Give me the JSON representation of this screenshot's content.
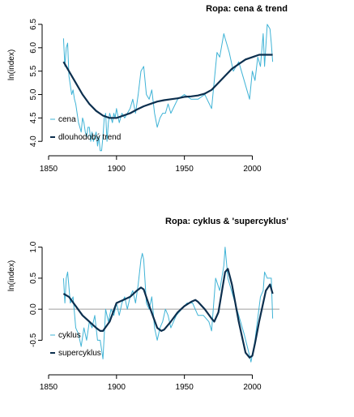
{
  "colors": {
    "price": "#3fb3d6",
    "trend": "#0c2f4e",
    "zero_line": "#b0b0b0"
  },
  "chart_data": [
    {
      "type": "line",
      "title": "Ropa: cena & trend",
      "ylabel": "ln(index)",
      "xlim": [
        1850,
        2020
      ],
      "ylim": [
        3.9,
        6.5
      ],
      "x_ticks": [
        "1850",
        "1900",
        "1950",
        "2000"
      ],
      "y_ticks": [
        "4.0",
        "4.5",
        "5.0",
        "5.5",
        "6.0",
        "6.5"
      ],
      "grid": false,
      "legend": "bottom-left",
      "series": [
        {
          "name": "cena",
          "x": [
            1861,
            1862,
            1863,
            1864,
            1865,
            1866,
            1867,
            1868,
            1869,
            1870,
            1871,
            1872,
            1873,
            1874,
            1875,
            1876,
            1877,
            1878,
            1879,
            1880,
            1881,
            1882,
            1883,
            1884,
            1885,
            1886,
            1887,
            1888,
            1889,
            1890,
            1891,
            1892,
            1893,
            1894,
            1895,
            1896,
            1897,
            1898,
            1899,
            1900,
            1902,
            1904,
            1906,
            1908,
            1910,
            1912,
            1914,
            1916,
            1918,
            1920,
            1922,
            1924,
            1926,
            1928,
            1930,
            1932,
            1934,
            1936,
            1938,
            1940,
            1945,
            1950,
            1955,
            1960,
            1965,
            1970,
            1973,
            1974,
            1976,
            1979,
            1980,
            1983,
            1986,
            1990,
            1994,
            1998,
            2000,
            2002,
            2004,
            2006,
            2008,
            2009,
            2011,
            2013,
            2014,
            2015
          ],
          "values": [
            6.2,
            5.6,
            6.0,
            6.1,
            5.4,
            5.2,
            5.0,
            5.1,
            4.9,
            4.8,
            4.6,
            4.4,
            4.3,
            4.2,
            4.5,
            4.4,
            4.2,
            4.1,
            4.3,
            4.3,
            4.0,
            4.2,
            4.0,
            4.1,
            4.2,
            3.9,
            4.1,
            3.8,
            3.8,
            4.1,
            4.5,
            4.6,
            4.0,
            4.4,
            4.6,
            4.5,
            4.4,
            4.6,
            4.5,
            4.7,
            4.4,
            4.6,
            4.5,
            4.6,
            4.7,
            4.9,
            4.6,
            5.0,
            5.5,
            5.6,
            5.0,
            4.9,
            5.1,
            4.6,
            4.3,
            4.5,
            4.6,
            4.6,
            4.8,
            4.6,
            4.9,
            5.0,
            4.9,
            4.9,
            5.0,
            4.7,
            5.6,
            5.9,
            5.8,
            6.3,
            6.2,
            5.9,
            5.5,
            5.7,
            5.3,
            4.9,
            5.5,
            5.3,
            5.8,
            5.6,
            6.3,
            5.6,
            6.5,
            6.4,
            6.1,
            5.7
          ]
        },
        {
          "name": "dlouhodobý trend",
          "x": [
            1861,
            1865,
            1870,
            1875,
            1880,
            1885,
            1890,
            1895,
            1900,
            1905,
            1910,
            1915,
            1920,
            1925,
            1930,
            1935,
            1940,
            1945,
            1950,
            1955,
            1960,
            1965,
            1970,
            1975,
            1980,
            1985,
            1990,
            1995,
            2000,
            2005,
            2010,
            2015
          ],
          "values": [
            5.7,
            5.5,
            5.25,
            5.0,
            4.8,
            4.65,
            4.55,
            4.5,
            4.5,
            4.55,
            4.6,
            4.68,
            4.75,
            4.8,
            4.85,
            4.88,
            4.9,
            4.92,
            4.95,
            4.96,
            4.98,
            5.02,
            5.1,
            5.25,
            5.4,
            5.55,
            5.65,
            5.75,
            5.8,
            5.85,
            5.85,
            5.85
          ]
        }
      ]
    },
    {
      "type": "line",
      "title": "Ropa: cyklus & 'supercyklus'",
      "ylabel": "ln(index)",
      "xlim": [
        1850,
        2020
      ],
      "ylim": [
        -0.9,
        1.1
      ],
      "x_ticks": [
        "1850",
        "1900",
        "1950",
        "2000"
      ],
      "y_ticks": [
        "-0.5",
        "0.0",
        "0.5",
        "1.0"
      ],
      "grid": false,
      "legend": "bottom-left",
      "reference_line": 0,
      "series": [
        {
          "name": "cyklus",
          "x": [
            1861,
            1862,
            1863,
            1864,
            1866,
            1868,
            1870,
            1872,
            1874,
            1876,
            1878,
            1880,
            1882,
            1884,
            1886,
            1888,
            1890,
            1892,
            1894,
            1896,
            1898,
            1900,
            1902,
            1904,
            1906,
            1908,
            1910,
            1912,
            1914,
            1916,
            1918,
            1919,
            1920,
            1922,
            1924,
            1926,
            1928,
            1930,
            1932,
            1934,
            1936,
            1938,
            1940,
            1944,
            1948,
            1952,
            1956,
            1960,
            1964,
            1968,
            1970,
            1973,
            1976,
            1979,
            1980,
            1982,
            1986,
            1990,
            1994,
            1998,
            1999,
            2002,
            2006,
            2008,
            2009,
            2011,
            2014,
            2015
          ],
          "values": [
            0.5,
            0.1,
            0.5,
            0.6,
            0.1,
            0.2,
            -0.3,
            -0.4,
            -0.6,
            -0.3,
            -0.5,
            -0.2,
            -0.3,
            -0.1,
            -0.5,
            -0.5,
            -0.8,
            0.0,
            -0.2,
            0.0,
            -0.1,
            0.1,
            -0.1,
            0.1,
            0.2,
            0.0,
            0.2,
            0.3,
            0.1,
            0.4,
            0.8,
            0.9,
            0.8,
            0.1,
            0.0,
            0.2,
            -0.3,
            -0.5,
            -0.3,
            -0.2,
            0.0,
            -0.1,
            -0.3,
            -0.1,
            0.0,
            0.1,
            0.1,
            -0.1,
            -0.1,
            -0.2,
            -0.35,
            0.5,
            0.3,
            0.7,
            1.0,
            0.5,
            0.2,
            -0.1,
            -0.4,
            -0.75,
            -0.85,
            -0.5,
            0.2,
            0.3,
            0.6,
            0.5,
            0.5,
            -0.15
          ]
        },
        {
          "name": "supercyklus",
          "x": [
            1861,
            1865,
            1870,
            1875,
            1880,
            1885,
            1888,
            1890,
            1895,
            1900,
            1905,
            1910,
            1915,
            1918,
            1920,
            1925,
            1930,
            1933,
            1935,
            1940,
            1945,
            1950,
            1955,
            1958,
            1960,
            1965,
            1970,
            1972,
            1975,
            1980,
            1982,
            1985,
            1990,
            1995,
            1998,
            2000,
            2002,
            2005,
            2010,
            2013,
            2015
          ],
          "values": [
            0.25,
            0.2,
            0.05,
            -0.1,
            -0.2,
            -0.3,
            -0.35,
            -0.35,
            -0.2,
            0.1,
            0.15,
            0.2,
            0.3,
            0.35,
            0.32,
            0.0,
            -0.3,
            -0.35,
            -0.33,
            -0.2,
            -0.05,
            0.05,
            0.12,
            0.15,
            0.12,
            0.0,
            -0.15,
            -0.2,
            -0.05,
            0.6,
            0.65,
            0.4,
            -0.2,
            -0.7,
            -0.78,
            -0.75,
            -0.55,
            -0.2,
            0.3,
            0.4,
            0.25
          ]
        }
      ]
    }
  ]
}
